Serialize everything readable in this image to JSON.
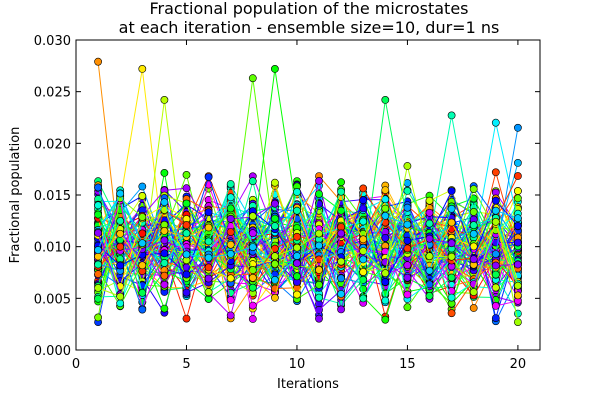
{
  "chart_data": {
    "type": "line",
    "title_lines": [
      "Fractional population of the microstates",
      "at each iteration - ensemble size=10, dur=1 ns"
    ],
    "xlabel": "Iterations",
    "ylabel": "Fractional population",
    "xlim": [
      0,
      21
    ],
    "ylim": [
      0,
      0.03
    ],
    "x_ticks": [
      0,
      5,
      10,
      15,
      20
    ],
    "x_tick_labels": [
      "0",
      "5",
      "10",
      "15",
      "20"
    ],
    "y_ticks": [
      0.0,
      0.005,
      0.01,
      0.015,
      0.02,
      0.025,
      0.03
    ],
    "y_tick_labels": [
      "0.000",
      "0.005",
      "0.010",
      "0.015",
      "0.020",
      "0.025",
      "0.030"
    ],
    "grid": false,
    "legend": "none",
    "marker": "circle",
    "x": [
      1,
      2,
      3,
      4,
      5,
      6,
      7,
      8,
      9,
      10,
      11,
      12,
      13,
      14,
      15,
      16,
      17,
      18,
      19,
      20
    ],
    "series_count": 100,
    "series_colors": [
      "#ff0000",
      "#ff7f00",
      "#ffd700",
      "#80ff00",
      "#00ff00",
      "#00ffa0",
      "#00ffff",
      "#0080ff",
      "#0000ff",
      "#8000ff",
      "#ff00ff",
      "#ff00aa"
    ],
    "notable_points": [
      {
        "x": 1,
        "y": 0.0279
      },
      {
        "x": 3,
        "y": 0.0272
      },
      {
        "x": 4,
        "y": 0.0242
      },
      {
        "x": 8,
        "y": 0.0263
      },
      {
        "x": 9,
        "y": 0.0272
      },
      {
        "x": 14,
        "y": 0.0242
      },
      {
        "x": 17,
        "y": 0.0227
      },
      {
        "x": 19,
        "y": 0.022
      },
      {
        "x": 20,
        "y": 0.0215
      }
    ],
    "typical_range": [
      0.0,
      0.0225
    ],
    "typical_mean": 0.01
  }
}
